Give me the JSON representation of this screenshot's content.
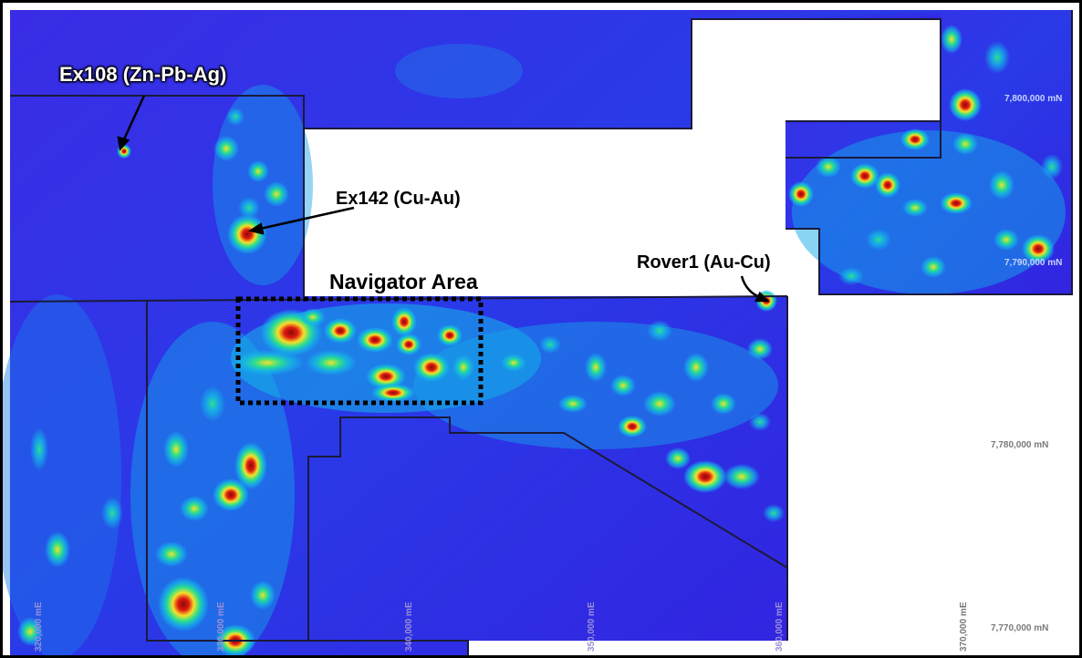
{
  "map": {
    "deposits": [
      {
        "id": "ex108",
        "label": "Ex108 (Zn-Pb-Ag)",
        "style": "white"
      },
      {
        "id": "ex142",
        "label": "Ex142 (Cu-Au)",
        "style": "black"
      },
      {
        "id": "rover1",
        "label": "Rover1 (Au-Cu)",
        "style": "black"
      }
    ],
    "area_label": "Navigator Area",
    "northings": [
      "7,800,000 mN",
      "7,790,000 mN",
      "7,780,000 mN",
      "7,770,000 mN"
    ],
    "eastings": [
      "320,000 mE",
      "330,000 mE",
      "340,000 mE",
      "350,000 mE",
      "360,000 mE",
      "370,000 mE"
    ],
    "colors": {
      "low": "#2b1fe0",
      "mid_low": "#14b8e8",
      "mid": "#2ee08a",
      "mid_high": "#f5e02a",
      "high": "#e01a10",
      "peak": "#8a0a0a",
      "boundary": "#1a1a3a",
      "frame": "#000000"
    }
  }
}
